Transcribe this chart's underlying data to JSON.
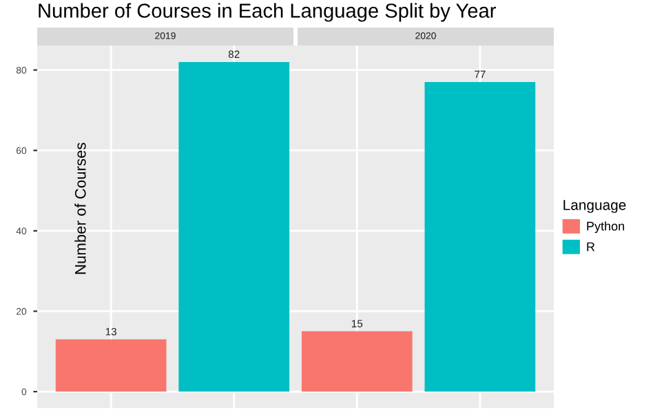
{
  "chart_data": {
    "type": "bar",
    "title": "Number of Courses in Each Language Split by Year",
    "ylabel": "Number of Courses",
    "categories": [
      null,
      null,
      null,
      null
    ],
    "annotations": [
      "2019",
      "2020"
    ],
    "series": [
      {
        "name": "Python",
        "color": "#f8766d",
        "values": [
          13,
          null,
          15,
          null
        ]
      },
      {
        "name": "R",
        "color": "#00bfc4",
        "values": [
          null,
          82,
          null,
          77
        ]
      }
    ],
    "ylim": [
      -4.1,
      86.1
    ],
    "yticks": [
      0,
      20,
      40,
      60,
      80
    ],
    "grid": true,
    "data_labels": true,
    "tick_labels": "y",
    "legend": "right",
    "legend_title": "Language"
  }
}
